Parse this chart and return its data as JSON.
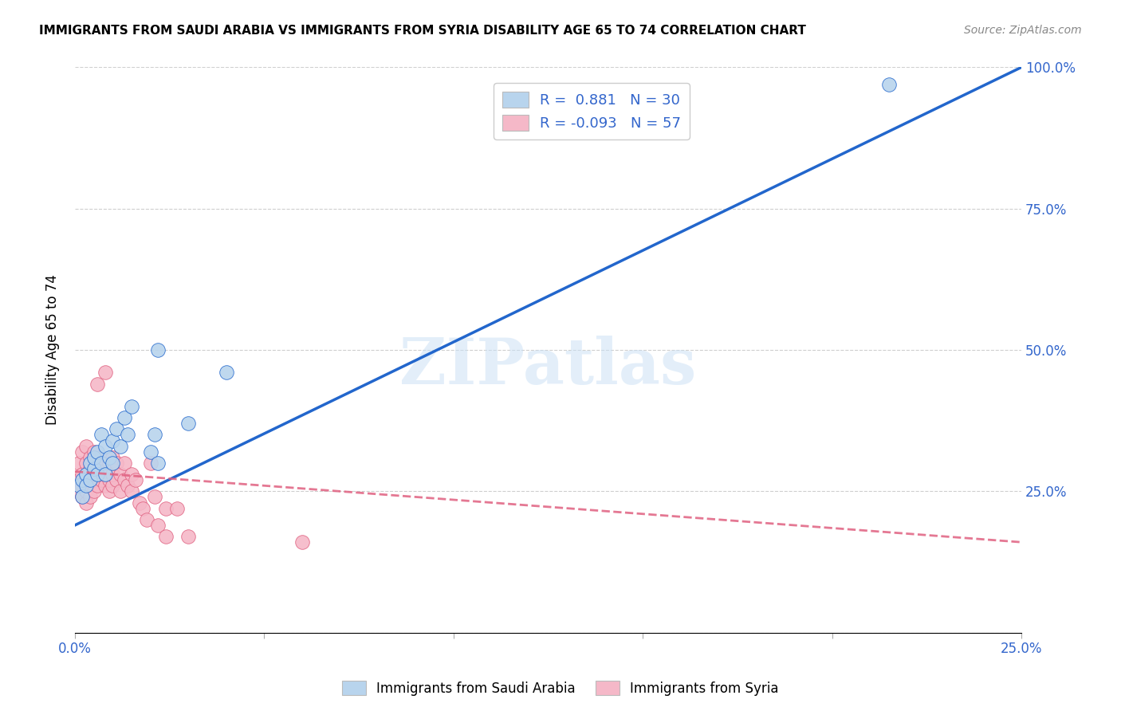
{
  "title": "IMMIGRANTS FROM SAUDI ARABIA VS IMMIGRANTS FROM SYRIA DISABILITY AGE 65 TO 74 CORRELATION CHART",
  "source": "Source: ZipAtlas.com",
  "ylabel": "Disability Age 65 to 74",
  "xlim": [
    0.0,
    0.25
  ],
  "ylim": [
    0.0,
    1.0
  ],
  "xticks": [
    0.0,
    0.05,
    0.1,
    0.15,
    0.2,
    0.25
  ],
  "xticklabels": [
    "0.0%",
    "",
    "",
    "",
    "",
    "25.0%"
  ],
  "yticks": [
    0.0,
    0.25,
    0.5,
    0.75,
    1.0
  ],
  "yticklabels_right": [
    "",
    "25.0%",
    "50.0%",
    "75.0%",
    "100.0%"
  ],
  "R_blue": 0.881,
  "N_blue": 30,
  "R_pink": -0.093,
  "N_pink": 57,
  "blue_color": "#b8d4ed",
  "blue_line_color": "#2266cc",
  "pink_color": "#f5b8c8",
  "pink_line_color": "#e06080",
  "watermark": "ZIPatlas",
  "legend_label_blue": "Immigrants from Saudi Arabia",
  "legend_label_pink": "Immigrants from Syria",
  "blue_scatter_x": [
    0.001,
    0.002,
    0.002,
    0.003,
    0.003,
    0.004,
    0.004,
    0.005,
    0.005,
    0.006,
    0.006,
    0.007,
    0.007,
    0.008,
    0.008,
    0.009,
    0.01,
    0.01,
    0.011,
    0.012,
    0.013,
    0.014,
    0.015,
    0.02,
    0.021,
    0.022,
    0.022,
    0.03,
    0.04,
    0.215
  ],
  "blue_scatter_y": [
    0.26,
    0.24,
    0.27,
    0.28,
    0.26,
    0.3,
    0.27,
    0.29,
    0.31,
    0.32,
    0.28,
    0.35,
    0.3,
    0.33,
    0.28,
    0.31,
    0.34,
    0.3,
    0.36,
    0.33,
    0.38,
    0.35,
    0.4,
    0.32,
    0.35,
    0.3,
    0.5,
    0.37,
    0.46,
    0.97
  ],
  "pink_scatter_x": [
    0.001,
    0.001,
    0.001,
    0.002,
    0.002,
    0.002,
    0.002,
    0.003,
    0.003,
    0.003,
    0.003,
    0.003,
    0.004,
    0.004,
    0.004,
    0.004,
    0.005,
    0.005,
    0.005,
    0.005,
    0.006,
    0.006,
    0.006,
    0.006,
    0.007,
    0.007,
    0.007,
    0.008,
    0.008,
    0.008,
    0.009,
    0.009,
    0.009,
    0.01,
    0.01,
    0.01,
    0.011,
    0.011,
    0.012,
    0.012,
    0.013,
    0.013,
    0.014,
    0.015,
    0.015,
    0.016,
    0.017,
    0.018,
    0.019,
    0.02,
    0.021,
    0.022,
    0.024,
    0.024,
    0.027,
    0.03,
    0.06
  ],
  "pink_scatter_y": [
    0.25,
    0.27,
    0.3,
    0.24,
    0.26,
    0.28,
    0.32,
    0.23,
    0.25,
    0.27,
    0.3,
    0.33,
    0.24,
    0.27,
    0.29,
    0.31,
    0.25,
    0.27,
    0.29,
    0.32,
    0.26,
    0.28,
    0.3,
    0.44,
    0.27,
    0.29,
    0.31,
    0.26,
    0.28,
    0.46,
    0.25,
    0.27,
    0.3,
    0.26,
    0.28,
    0.31,
    0.27,
    0.3,
    0.25,
    0.28,
    0.27,
    0.3,
    0.26,
    0.25,
    0.28,
    0.27,
    0.23,
    0.22,
    0.2,
    0.3,
    0.24,
    0.19,
    0.22,
    0.17,
    0.22,
    0.17,
    0.16
  ],
  "blue_line_x0": 0.0,
  "blue_line_y0": 0.19,
  "blue_line_x1": 0.25,
  "blue_line_y1": 1.0,
  "pink_line_x0": 0.0,
  "pink_line_y0": 0.285,
  "pink_line_x1": 0.25,
  "pink_line_y1": 0.16
}
